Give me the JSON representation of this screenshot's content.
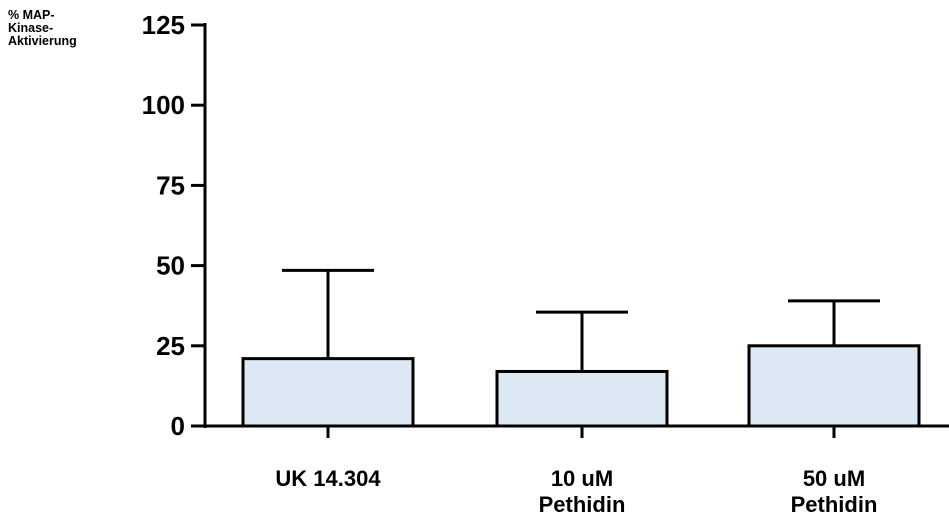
{
  "chart_data": {
    "type": "bar",
    "ylabel_lines": [
      "% MAP-",
      "Kinase-",
      "Aktivierung"
    ],
    "xlabel": "",
    "ylim": [
      0,
      125
    ],
    "yticks": [
      0,
      25,
      50,
      75,
      100,
      125
    ],
    "categories": [
      [
        "UK 14.304"
      ],
      [
        "10 uM",
        "Pethidin"
      ],
      [
        "50 uM",
        "Pethidin"
      ]
    ],
    "values": [
      21,
      17,
      25
    ],
    "error_upper": [
      48.5,
      35.5,
      39
    ],
    "bar_color": "#dce9f4",
    "grid": false
  }
}
